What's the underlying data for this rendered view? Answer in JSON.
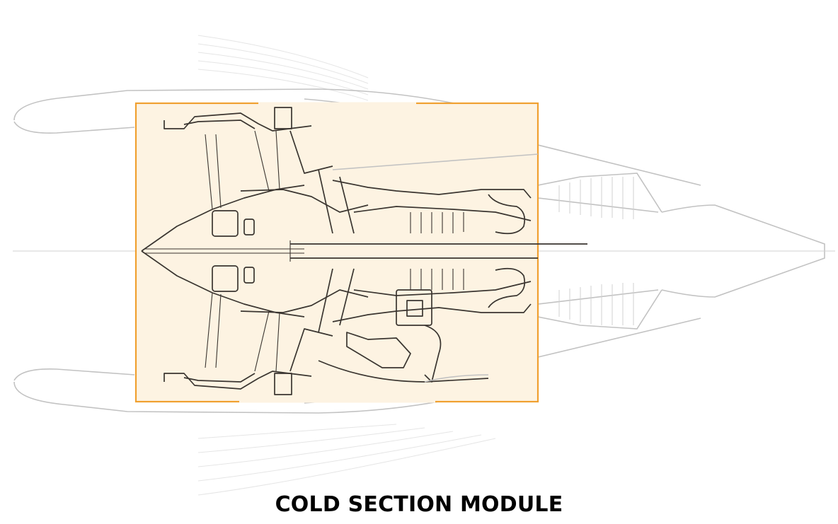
{
  "caption": "COLD SECTION MODULE",
  "colors": {
    "highlight_fill": "#fdf3e2",
    "highlight_border": "#f0a030",
    "module_lines": "#3a3530",
    "ghost_lines": "#c2c2c2"
  },
  "highlighted_module": "cold-section"
}
